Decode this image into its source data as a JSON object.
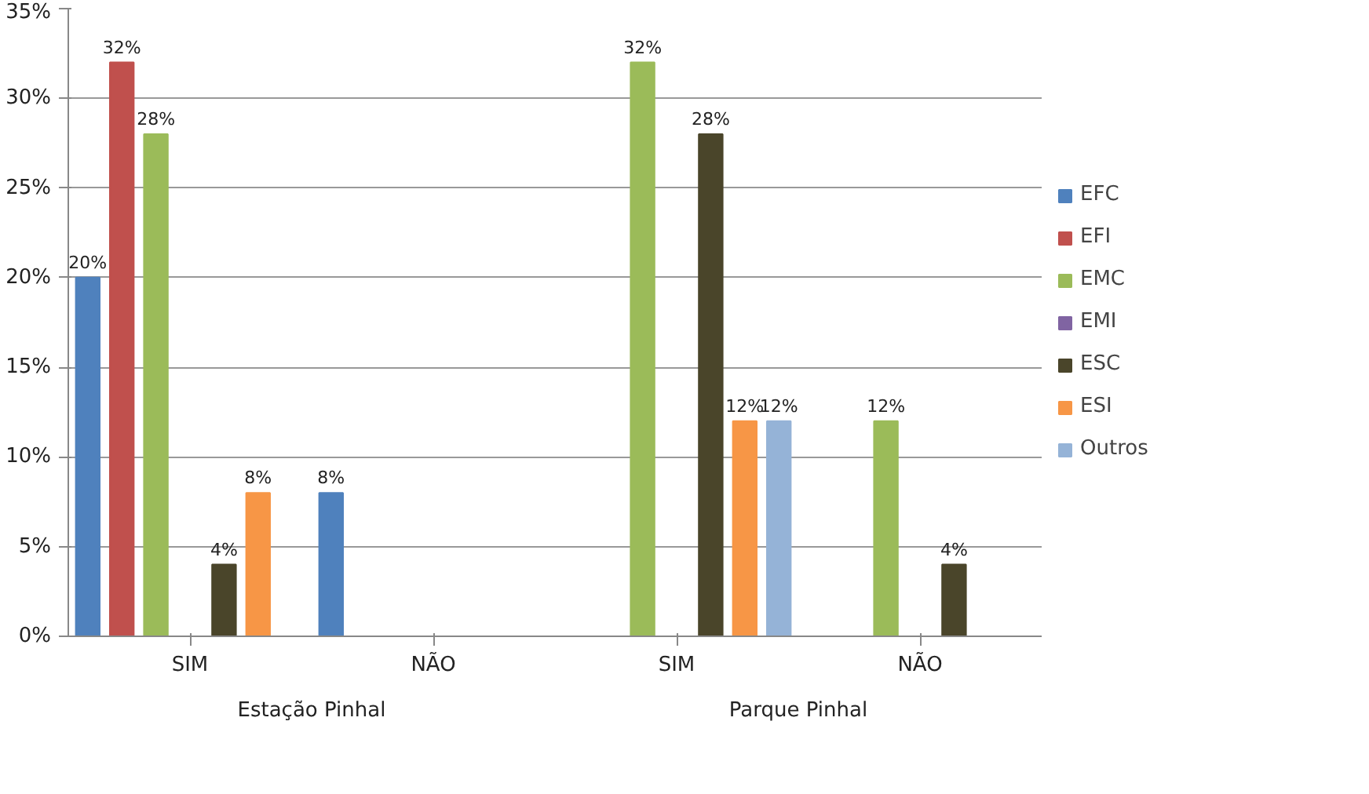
{
  "chart_data": {
    "type": "bar",
    "categories": [
      "SIM",
      "NÃO",
      "SIM",
      "NÃO"
    ],
    "annotations": [
      "Estação Pinhal",
      "Parque Pinhal"
    ],
    "series": [
      {
        "name": "EFC",
        "color": "#4f81bd",
        "values": [
          20,
          8,
          null,
          null
        ],
        "value_labels": [
          "20%",
          "8%",
          null,
          null
        ]
      },
      {
        "name": "EFI",
        "color": "#c0504d",
        "values": [
          32,
          null,
          null,
          null
        ],
        "value_labels": [
          "32%",
          null,
          null,
          null
        ]
      },
      {
        "name": "EMC",
        "color": "#9bbb59",
        "values": [
          28,
          null,
          32,
          12
        ],
        "value_labels": [
          "28%",
          null,
          "32%",
          "12%"
        ]
      },
      {
        "name": "EMI",
        "color": "#8064a2",
        "values": [
          0,
          0,
          0,
          0
        ]
      },
      {
        "name": "ESC",
        "color": "#4a452a",
        "values": [
          4,
          null,
          28,
          4
        ],
        "value_labels": [
          "4%",
          null,
          "28%",
          "4%"
        ]
      },
      {
        "name": "ESI",
        "color": "#f79646",
        "values": [
          8,
          null,
          12,
          null
        ],
        "value_labels": [
          "8%",
          null,
          "12%",
          null
        ]
      },
      {
        "name": "Outros",
        "color": "#95b3d7",
        "values": [
          null,
          null,
          12,
          null
        ],
        "value_labels": [
          null,
          null,
          "12%",
          null
        ]
      }
    ],
    "ylim": [
      0,
      35
    ],
    "yticks": [
      {
        "value": 0,
        "label": "0%"
      },
      {
        "value": 5,
        "label": "5%"
      },
      {
        "value": 10,
        "label": "10%"
      },
      {
        "value": 15,
        "label": "15%"
      },
      {
        "value": 20,
        "label": "20%"
      },
      {
        "value": 25,
        "label": "25%"
      },
      {
        "value": 30,
        "label": "30%"
      },
      {
        "value": 35,
        "label": "35%"
      }
    ],
    "grid": "y",
    "legend": "right"
  }
}
